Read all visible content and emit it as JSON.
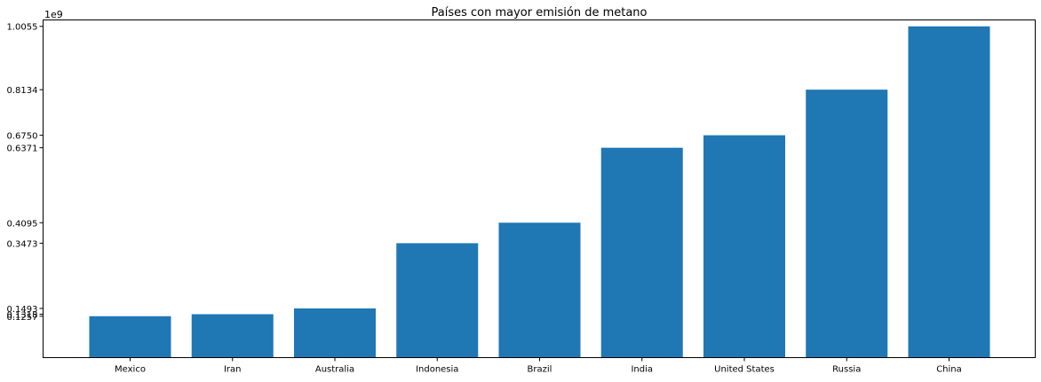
{
  "chart_data": {
    "type": "bar",
    "title": "Países con mayor emisión de metano",
    "xlabel": "",
    "ylabel": "",
    "offset_text": "1e9",
    "scale": 1000000000,
    "categories": [
      "Mexico",
      "Iran",
      "Australia",
      "Indonesia",
      "Brazil",
      "India",
      "United States",
      "Russia",
      "China"
    ],
    "values": [
      125700000,
      131800000,
      149300000,
      347300000,
      409500000,
      637100000,
      675000000,
      813400000,
      1005500000
    ],
    "ytick_labels": [
      "0.1257",
      "0.1318",
      "0.1493",
      "0.3473",
      "0.4095",
      "0.6371",
      "0.6750",
      "0.8134",
      "1.0055"
    ],
    "ylim": [
      0,
      1025000000
    ],
    "bar_color": "#1f77b4",
    "grid": false
  }
}
